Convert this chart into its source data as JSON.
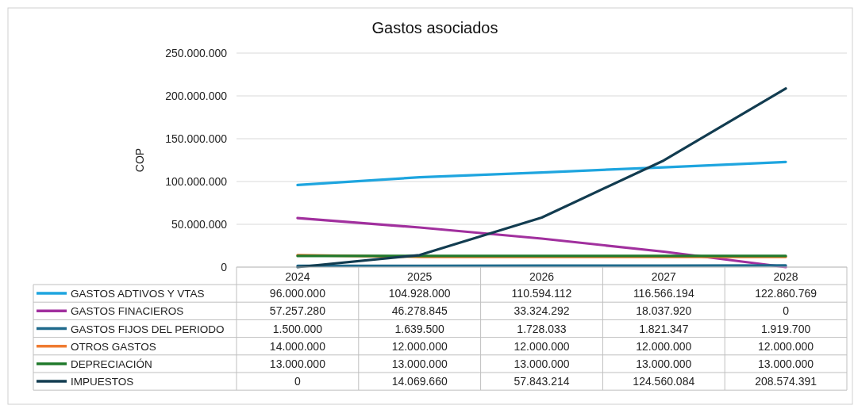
{
  "chart_data": {
    "type": "line",
    "title": "Gastos asociados",
    "ylabel": "COP",
    "categories": [
      "2024",
      "2025",
      "2026",
      "2027",
      "2028"
    ],
    "ylim": [
      0,
      250000000
    ],
    "yticks": [
      0,
      {
        "value": 50000000,
        "label": "50.000.000"
      },
      {
        "value": 100000000,
        "label": "100.000.000"
      },
      {
        "value": 150000000,
        "label": "150.000.000"
      },
      {
        "value": 200000000,
        "label": "200.000.000"
      },
      {
        "value": 250000000,
        "label": "250.000.000"
      }
    ],
    "grid": "y",
    "legend": "bottom",
    "marker": "none",
    "line_style": "solid",
    "series": [
      {
        "name": "GASTOS ADTIVOS Y VTAS",
        "color": "#1ea5df",
        "values": [
          96000000,
          104928000,
          110594112,
          116566194,
          122860769
        ],
        "value_labels": [
          "96.000.000",
          "104.928.000",
          "110.594.112",
          "116.566.194",
          "122.860.769"
        ]
      },
      {
        "name": "GASTOS FINACIEROS",
        "color": "#a1309e",
        "values": [
          57257280,
          46278845,
          33324292,
          18037920,
          0
        ],
        "value_labels": [
          "57.257.280",
          "46.278.845",
          "33.324.292",
          "18.037.920",
          "0"
        ]
      },
      {
        "name": "GASTOS FIJOS DEL PERIODO",
        "color": "#1f6a8c",
        "values": [
          1500000,
          1639500,
          1728033,
          1821347,
          1919700
        ],
        "value_labels": [
          "1.500.000",
          "1.639.500",
          "1.728.033",
          "1.821.347",
          "1.919.700"
        ]
      },
      {
        "name": "OTROS GASTOS",
        "color": "#ef7b31",
        "values": [
          14000000,
          12000000,
          12000000,
          12000000,
          12000000
        ],
        "value_labels": [
          "14.000.000",
          "12.000.000",
          "12.000.000",
          "12.000.000",
          "12.000.000"
        ]
      },
      {
        "name": "DEPRECIACIÓN",
        "color": "#217a2c",
        "values": [
          13000000,
          13000000,
          13000000,
          13000000,
          13000000
        ],
        "value_labels": [
          "13.000.000",
          "13.000.000",
          "13.000.000",
          "13.000.000",
          "13.000.000"
        ]
      },
      {
        "name": "IMPUESTOS",
        "color": "#123c50",
        "values": [
          0,
          14069660,
          57843214,
          124560084,
          208574391
        ],
        "value_labels": [
          "0",
          "14.069.660",
          "57.843.214",
          "124.560.084",
          "208.574.391"
        ]
      }
    ]
  }
}
